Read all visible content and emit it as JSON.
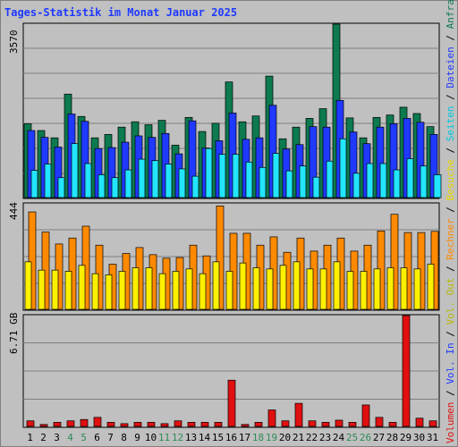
{
  "title": "Tages-Statistik im Monat Januar 2025",
  "colors": {
    "background": "#c0c0c0",
    "plot_bg": "#c0c0c0",
    "grid": "#808080",
    "title": "#1f39ff",
    "anfragen": "#0d7a4f",
    "dateien": "#1f39ff",
    "seiten": "#22e5ff",
    "besuche": "#fff000",
    "rechner": "#ff8a00",
    "vol_out": "#c8c800",
    "vol_in": "#1f39ff",
    "volumen": "#e01010",
    "weekend_label": "#2e8b57"
  },
  "legend": {
    "anfragen": "Anfragen",
    "dateien": "Dateien",
    "seiten": "Seiten",
    "besuche": "Besuche",
    "rechner": "Rechner",
    "vol_out": "Vol. Out",
    "vol_in": "Vol. In",
    "volumen": "Volumen",
    "sep": "/"
  },
  "chart_data": [
    {
      "type": "bar",
      "name": "hits",
      "ymax_label": "3570",
      "ylim": [
        0,
        3570
      ],
      "categories": [
        "1",
        "2",
        "3",
        "4",
        "5",
        "6",
        "7",
        "8",
        "9",
        "10",
        "11",
        "12",
        "13",
        "14",
        "15",
        "16",
        "17",
        "18",
        "19",
        "20",
        "21",
        "22",
        "23",
        "24",
        "25",
        "26",
        "27",
        "28",
        "29",
        "30",
        "31"
      ],
      "weekend_days": [
        "4",
        "5",
        "11",
        "12",
        "18",
        "19",
        "25",
        "26"
      ],
      "series": [
        {
          "name": "Anfragen",
          "values": [
            1520,
            1380,
            1230,
            2130,
            1670,
            1230,
            1300,
            1450,
            1560,
            1500,
            1590,
            1080,
            1650,
            1360,
            1530,
            2380,
            1560,
            1680,
            2500,
            1210,
            1450,
            1630,
            1830,
            3570,
            1640,
            1230,
            1650,
            1700,
            1860,
            1730,
            1460
          ]
        },
        {
          "name": "Dateien",
          "values": [
            1380,
            1240,
            1040,
            1720,
            1570,
            1010,
            1030,
            1140,
            1270,
            1240,
            1320,
            900,
            1580,
            1020,
            1170,
            1740,
            1200,
            1230,
            1900,
            1000,
            1090,
            1460,
            1450,
            2000,
            1350,
            1110,
            1450,
            1520,
            1630,
            1550,
            1300
          ]
        },
        {
          "name": "Seiten",
          "values": [
            560,
            690,
            410,
            1110,
            700,
            470,
            410,
            570,
            790,
            760,
            690,
            590,
            440,
            1010,
            890,
            890,
            730,
            620,
            910,
            550,
            650,
            420,
            750,
            1210,
            500,
            700,
            700,
            570,
            800,
            650,
            470
          ]
        }
      ]
    },
    {
      "type": "bar",
      "name": "visits",
      "ymax_label": "444",
      "ylim": [
        0,
        444
      ],
      "categories": [
        "1",
        "2",
        "3",
        "4",
        "5",
        "6",
        "7",
        "8",
        "9",
        "10",
        "11",
        "12",
        "13",
        "14",
        "15",
        "16",
        "17",
        "18",
        "19",
        "20",
        "21",
        "22",
        "23",
        "24",
        "25",
        "26",
        "27",
        "28",
        "29",
        "30",
        "31"
      ],
      "series": [
        {
          "name": "Rechner",
          "values": [
            410,
            325,
            275,
            300,
            350,
            270,
            190,
            235,
            260,
            230,
            215,
            218,
            270,
            225,
            435,
            320,
            320,
            270,
            305,
            240,
            300,
            245,
            270,
            300,
            245,
            270,
            330,
            400,
            323,
            323,
            328
          ]
        },
        {
          "name": "Besuche",
          "values": [
            200,
            165,
            165,
            160,
            185,
            150,
            145,
            160,
            175,
            175,
            150,
            160,
            170,
            150,
            200,
            160,
            195,
            175,
            170,
            185,
            200,
            170,
            170,
            200,
            160,
            160,
            170,
            175,
            175,
            170,
            190
          ]
        }
      ]
    },
    {
      "type": "bar",
      "name": "volume",
      "ymax_label": "6.71 GB",
      "ylim": [
        0,
        6.71
      ],
      "unit": "GB",
      "categories": [
        "1",
        "2",
        "3",
        "4",
        "5",
        "6",
        "7",
        "8",
        "9",
        "10",
        "11",
        "12",
        "13",
        "14",
        "15",
        "16",
        "17",
        "18",
        "19",
        "20",
        "21",
        "22",
        "23",
        "24",
        "25",
        "26",
        "27",
        "28",
        "29",
        "30",
        "31"
      ],
      "series": [
        {
          "name": "Volumen",
          "values": [
            0.34,
            0.12,
            0.25,
            0.34,
            0.42,
            0.55,
            0.25,
            0.17,
            0.25,
            0.25,
            0.17,
            0.34,
            0.25,
            0.25,
            0.25,
            2.8,
            0.12,
            0.25,
            1.0,
            0.34,
            1.4,
            0.34,
            0.25,
            0.38,
            0.25,
            1.3,
            0.55,
            0.25,
            6.71,
            0.5,
            0.34
          ]
        }
      ]
    }
  ]
}
